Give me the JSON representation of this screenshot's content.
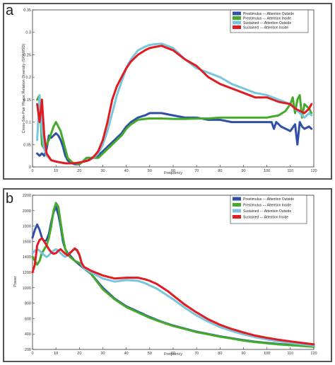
{
  "figure": {
    "panels": [
      {
        "letter": "a"
      },
      {
        "letter": "b"
      }
    ]
  },
  "colors": {
    "prestim_outside": "#3050a8",
    "prestim_inside": "#44aa2a",
    "sustained_outside": "#78c6dc",
    "sustained_inside": "#e01c22"
  },
  "chart_data": [
    {
      "type": "line",
      "panel": "a",
      "title": "",
      "xlabel": "Frequency",
      "ylabel": "Cross-Site-Pair Phase Relation Diversity (SPAMSD)",
      "xlim": [
        0,
        120
      ],
      "ylim": [
        0,
        0.35
      ],
      "xticks": [
        "0",
        "10",
        "20",
        "30",
        "40",
        "50",
        "60",
        "70",
        "80",
        "90",
        "100",
        "110",
        "120"
      ],
      "yticks": [
        "0",
        "0.05",
        "0.1",
        "0.15",
        "0.2",
        "0.25",
        "0.3",
        "0.35"
      ],
      "grid": false,
      "legend_position": "top-right",
      "series": [
        {
          "name": "Prestimulus --- Attention Outside",
          "color": "#3050a8",
          "x": [
            2,
            3,
            4,
            5,
            6,
            7,
            8,
            9,
            10,
            11,
            12,
            13,
            14,
            15,
            16,
            17,
            18,
            19,
            20,
            21,
            22,
            23,
            25,
            28,
            30,
            33,
            36,
            38,
            40,
            42,
            45,
            48,
            50,
            55,
            60,
            65,
            70,
            75,
            80,
            85,
            90,
            95,
            100,
            102,
            103,
            104,
            105,
            106,
            108,
            110,
            112,
            113,
            114,
            115,
            116,
            118,
            119
          ],
          "y": [
            0.03,
            0.025,
            0.03,
            0.025,
            0.04,
            0.07,
            0.065,
            0.07,
            0.075,
            0.07,
            0.06,
            0.045,
            0.025,
            0.015,
            0.01,
            0.008,
            0.006,
            0.006,
            0.006,
            0.01,
            0.015,
            0.02,
            0.02,
            0.025,
            0.035,
            0.05,
            0.065,
            0.075,
            0.09,
            0.1,
            0.11,
            0.115,
            0.12,
            0.12,
            0.115,
            0.11,
            0.11,
            0.105,
            0.105,
            0.1,
            0.1,
            0.1,
            0.1,
            0.1,
            0.085,
            0.1,
            0.095,
            0.09,
            0.085,
            0.08,
            0.095,
            0.05,
            0.1,
            0.09,
            0.085,
            0.09,
            0.085
          ]
        },
        {
          "name": "Prestimulus --- Attention Inside",
          "color": "#44aa2a",
          "x": [
            2,
            3,
            4,
            5,
            6,
            7,
            8,
            9,
            10,
            11,
            12,
            13,
            14,
            15,
            16,
            17,
            18,
            19,
            20,
            21,
            22,
            23,
            25,
            28,
            30,
            33,
            36,
            38,
            40,
            42,
            45,
            48,
            50,
            55,
            60,
            65,
            70,
            75,
            80,
            85,
            90,
            95,
            100,
            105,
            108,
            110,
            111,
            112,
            113,
            114,
            115,
            116,
            118,
            119
          ],
          "y": [
            0.15,
            0.16,
            0.05,
            0.04,
            0.05,
            0.06,
            0.075,
            0.09,
            0.1,
            0.09,
            0.08,
            0.06,
            0.04,
            0.02,
            0.015,
            0.01,
            0.008,
            0.007,
            0.007,
            0.01,
            0.015,
            0.02,
            0.02,
            0.02,
            0.03,
            0.045,
            0.06,
            0.07,
            0.085,
            0.095,
            0.105,
            0.107,
            0.108,
            0.108,
            0.107,
            0.107,
            0.108,
            0.108,
            0.11,
            0.11,
            0.11,
            0.11,
            0.11,
            0.115,
            0.125,
            0.14,
            0.155,
            0.12,
            0.15,
            0.16,
            0.11,
            0.14,
            0.13,
            0.12
          ]
        },
        {
          "name": "Sustained --- Attention Outside",
          "color": "#78c6dc",
          "x": [
            2,
            3,
            4,
            5,
            6,
            8,
            10,
            12,
            14,
            16,
            18,
            20,
            22,
            24,
            26,
            28,
            30,
            32,
            34,
            36,
            38,
            40,
            42,
            45,
            48,
            50,
            55,
            60,
            65,
            70,
            75,
            80,
            85,
            90,
            95,
            100,
            105,
            110,
            112,
            114,
            116,
            118,
            119
          ],
          "y": [
            0.06,
            0.16,
            0.08,
            0.04,
            0.025,
            0.015,
            0.012,
            0.01,
            0.008,
            0.008,
            0.008,
            0.01,
            0.012,
            0.015,
            0.02,
            0.03,
            0.05,
            0.08,
            0.12,
            0.16,
            0.19,
            0.22,
            0.24,
            0.26,
            0.268,
            0.272,
            0.275,
            0.265,
            0.24,
            0.22,
            0.21,
            0.2,
            0.185,
            0.175,
            0.165,
            0.16,
            0.15,
            0.14,
            0.13,
            0.12,
            0.11,
            0.12,
            0.115
          ]
        },
        {
          "name": "Sustained --- Attention Inside",
          "color": "#e01c22",
          "x": [
            2,
            3,
            4,
            5,
            6,
            8,
            10,
            12,
            14,
            16,
            18,
            20,
            22,
            24,
            26,
            28,
            30,
            32,
            34,
            36,
            38,
            40,
            42,
            45,
            48,
            50,
            55,
            60,
            65,
            70,
            75,
            80,
            85,
            90,
            95,
            100,
            105,
            110,
            112,
            114,
            116,
            118,
            119
          ],
          "y": [
            0.14,
            0.1,
            0.15,
            0.07,
            0.03,
            0.015,
            0.012,
            0.01,
            0.008,
            0.008,
            0.008,
            0.01,
            0.012,
            0.015,
            0.022,
            0.035,
            0.06,
            0.1,
            0.15,
            0.18,
            0.2,
            0.22,
            0.235,
            0.25,
            0.26,
            0.265,
            0.27,
            0.26,
            0.24,
            0.225,
            0.2,
            0.185,
            0.175,
            0.165,
            0.155,
            0.155,
            0.145,
            0.14,
            0.13,
            0.125,
            0.12,
            0.13,
            0.14
          ]
        }
      ]
    },
    {
      "type": "line",
      "panel": "b",
      "title": "",
      "xlabel": "Frequency",
      "ylabel": "Power",
      "xlim": [
        0,
        120
      ],
      "ylim": [
        200,
        2200
      ],
      "xticks": [
        "0",
        "10",
        "20",
        "30",
        "40",
        "50",
        "60",
        "70",
        "80",
        "90",
        "100",
        "110",
        "120"
      ],
      "yticks": [
        "200",
        "400",
        "600",
        "800",
        "1000",
        "1200",
        "1400",
        "1600",
        "1800",
        "2000",
        "2200"
      ],
      "grid": false,
      "legend_position": "top-right",
      "series": [
        {
          "name": "Prestimulus --- Attention Outside",
          "color": "#3050a8",
          "x": [
            0,
            1,
            2,
            3,
            4,
            5,
            6,
            7,
            8,
            9,
            10,
            11,
            12,
            13,
            14,
            15,
            16,
            18,
            20,
            22,
            25,
            30,
            35,
            40,
            45,
            50,
            55,
            60,
            65,
            70,
            75,
            80,
            85,
            90,
            95,
            100,
            105,
            110,
            115,
            120
          ],
          "y": [
            1650,
            1750,
            1820,
            1750,
            1650,
            1600,
            1620,
            1700,
            1850,
            1980,
            2050,
            1950,
            1800,
            1600,
            1500,
            1450,
            1420,
            1350,
            1300,
            1250,
            1180,
            1000,
            860,
            760,
            690,
            620,
            560,
            510,
            470,
            430,
            400,
            370,
            345,
            320,
            300,
            285,
            270,
            260,
            250,
            240
          ]
        },
        {
          "name": "Prestimulus --- Attention Inside",
          "color": "#44aa2a",
          "x": [
            0,
            1,
            2,
            3,
            4,
            5,
            6,
            7,
            8,
            9,
            10,
            11,
            12,
            13,
            14,
            15,
            16,
            18,
            20,
            22,
            25,
            30,
            35,
            40,
            45,
            50,
            55,
            60,
            65,
            70,
            75,
            80,
            85,
            90,
            95,
            100,
            105,
            110,
            115,
            120
          ],
          "y": [
            1400,
            1350,
            1300,
            1350,
            1450,
            1500,
            1550,
            1650,
            1800,
            2000,
            2100,
            2050,
            1850,
            1650,
            1500,
            1430,
            1400,
            1350,
            1320,
            1260,
            1180,
            980,
            850,
            750,
            680,
            610,
            555,
            505,
            465,
            425,
            395,
            365,
            340,
            315,
            295,
            280,
            265,
            255,
            245,
            235
          ]
        },
        {
          "name": "Sustained --- Attention Outside",
          "color": "#78c6dc",
          "x": [
            0,
            1,
            2,
            3,
            4,
            5,
            6,
            7,
            8,
            9,
            10,
            11,
            12,
            13,
            14,
            15,
            16,
            17,
            18,
            19,
            20,
            21,
            22,
            25,
            30,
            35,
            40,
            45,
            48,
            50,
            53,
            55,
            58,
            60,
            65,
            70,
            75,
            80,
            85,
            90,
            95,
            100,
            105,
            110,
            115,
            120
          ],
          "y": [
            1450,
            1480,
            1500,
            1480,
            1450,
            1420,
            1400,
            1420,
            1460,
            1480,
            1500,
            1480,
            1450,
            1420,
            1400,
            1420,
            1460,
            1480,
            1500,
            1470,
            1420,
            1300,
            1250,
            1200,
            1120,
            1080,
            1100,
            1090,
            1060,
            1030,
            990,
            950,
            890,
            850,
            740,
            640,
            560,
            490,
            440,
            395,
            360,
            330,
            305,
            285,
            265,
            250
          ]
        },
        {
          "name": "Sustained --- Attention Inside",
          "color": "#e01c22",
          "x": [
            0,
            1,
            2,
            3,
            4,
            5,
            6,
            7,
            8,
            9,
            10,
            11,
            12,
            13,
            14,
            15,
            16,
            17,
            18,
            19,
            20,
            21,
            22,
            25,
            30,
            35,
            40,
            45,
            48,
            50,
            53,
            55,
            58,
            60,
            65,
            70,
            75,
            80,
            85,
            90,
            95,
            100,
            105,
            110,
            115,
            120
          ],
          "y": [
            1200,
            1300,
            1550,
            1620,
            1640,
            1600,
            1550,
            1500,
            1460,
            1440,
            1450,
            1480,
            1500,
            1470,
            1440,
            1420,
            1450,
            1480,
            1510,
            1490,
            1430,
            1320,
            1270,
            1220,
            1160,
            1120,
            1130,
            1130,
            1110,
            1090,
            1050,
            1010,
            950,
            900,
            780,
            680,
            590,
            520,
            465,
            420,
            380,
            350,
            325,
            305,
            285,
            265
          ]
        }
      ]
    }
  ]
}
